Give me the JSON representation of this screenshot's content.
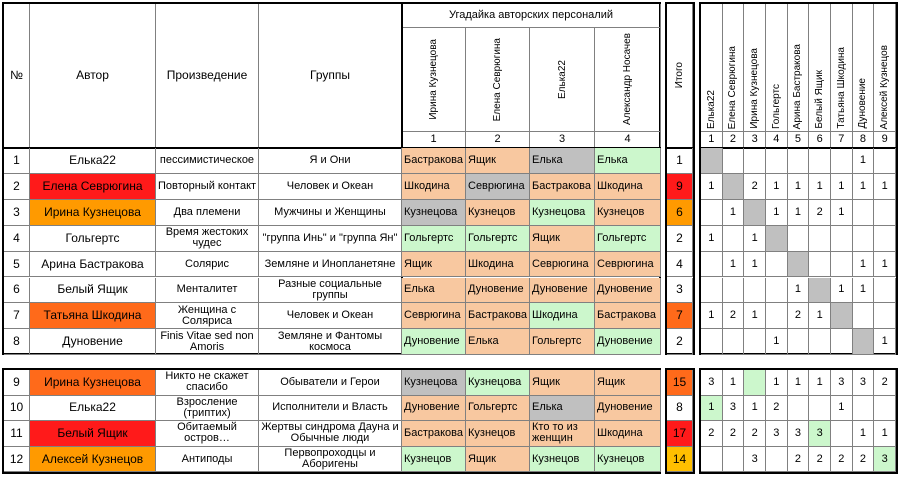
{
  "headers": {
    "num": "№",
    "author": "Автор",
    "work": "Произведение",
    "groups": "Группы",
    "guess_title": "Угадайка авторских персоналий",
    "total": "Итого"
  },
  "guessers": [
    "Ирина Кузнецова",
    "Елена Севрюгина",
    "Елька22",
    "Александр Носачев"
  ],
  "guesser_nums": [
    "1",
    "2",
    "3",
    "4"
  ],
  "matrix_authors": [
    "Елька22",
    "Елена Севрюгина",
    "Ирина Кузнецова",
    "Гольгертс",
    "Арина Бастракова",
    "Белый Ящик",
    "Татьяна Шкодина",
    "Дуновение",
    "Алексей Кузнецов"
  ],
  "matrix_nums": [
    "1",
    "2",
    "3",
    "4",
    "5",
    "6",
    "7",
    "8",
    "9"
  ],
  "colors": {
    "red": "#ff1a1a",
    "orange": "#ff9a00",
    "deep_orange": "#ff6a1a",
    "guess_green": "#ccf7cc",
    "guess_peach": "#f8c8a0",
    "guess_gray": "#c0c0c0",
    "score_yellow": "#ffbf00",
    "diag_gray": "#c0c0c0",
    "mx_green": "#ccf7cc"
  },
  "rows": [
    {
      "num": "1",
      "author": "Елька22",
      "author_color": "",
      "work": "пессимистическое",
      "groups": "Я и Они",
      "guesses": [
        {
          "t": "Бастракова",
          "c": "peach"
        },
        {
          "t": "Ящик",
          "c": "peach"
        },
        {
          "t": "Елька",
          "c": "gray"
        },
        {
          "t": "Елька",
          "c": "green"
        }
      ],
      "total": "1",
      "total_color": "",
      "matrix": [
        {
          "v": "",
          "c": "diag"
        },
        {
          "v": "",
          "c": ""
        },
        {
          "v": "",
          "c": ""
        },
        {
          "v": "",
          "c": ""
        },
        {
          "v": "",
          "c": ""
        },
        {
          "v": "",
          "c": ""
        },
        {
          "v": "",
          "c": ""
        },
        {
          "v": "1",
          "c": ""
        },
        {
          "v": "",
          "c": ""
        }
      ]
    },
    {
      "num": "2",
      "author": "Елена Севрюгина",
      "author_color": "red",
      "work": "Повторный контакт",
      "groups": "Человек и Океан",
      "guesses": [
        {
          "t": "Шкодина",
          "c": "peach"
        },
        {
          "t": "Севрюгина",
          "c": "gray"
        },
        {
          "t": "Бастракова",
          "c": "peach"
        },
        {
          "t": "Шкодина",
          "c": "peach"
        }
      ],
      "total": "9",
      "total_color": "red",
      "matrix": [
        {
          "v": "1",
          "c": ""
        },
        {
          "v": "",
          "c": "diag"
        },
        {
          "v": "2",
          "c": ""
        },
        {
          "v": "1",
          "c": ""
        },
        {
          "v": "1",
          "c": ""
        },
        {
          "v": "1",
          "c": ""
        },
        {
          "v": "1",
          "c": ""
        },
        {
          "v": "1",
          "c": ""
        },
        {
          "v": "1",
          "c": ""
        }
      ]
    },
    {
      "num": "3",
      "author": "Ирина Кузнецова",
      "author_color": "orange",
      "work": "Два племени",
      "groups": "Мужчины и Женщины",
      "guesses": [
        {
          "t": "Кузнецова",
          "c": "gray"
        },
        {
          "t": "Кузнецов",
          "c": "peach"
        },
        {
          "t": "Кузнецова",
          "c": "green"
        },
        {
          "t": "Кузнецов",
          "c": "peach"
        }
      ],
      "total": "6",
      "total_color": "orange",
      "matrix": [
        {
          "v": "",
          "c": ""
        },
        {
          "v": "1",
          "c": ""
        },
        {
          "v": "",
          "c": "diag"
        },
        {
          "v": "1",
          "c": ""
        },
        {
          "v": "1",
          "c": ""
        },
        {
          "v": "2",
          "c": ""
        },
        {
          "v": "1",
          "c": ""
        },
        {
          "v": "",
          "c": ""
        },
        {
          "v": "",
          "c": ""
        }
      ]
    },
    {
      "num": "4",
      "author": "Гольгертс",
      "author_color": "",
      "work": "Время жестоких чудес",
      "groups": "\"группа Инь\" и \"группа Ян\"",
      "guesses": [
        {
          "t": "Гольгертс",
          "c": "green"
        },
        {
          "t": "Гольгертс",
          "c": "green"
        },
        {
          "t": "Ящик",
          "c": "peach"
        },
        {
          "t": "Гольгертс",
          "c": "green"
        }
      ],
      "total": "2",
      "total_color": "",
      "matrix": [
        {
          "v": "1",
          "c": ""
        },
        {
          "v": "",
          "c": ""
        },
        {
          "v": "1",
          "c": ""
        },
        {
          "v": "",
          "c": "diag"
        },
        {
          "v": "",
          "c": ""
        },
        {
          "v": "",
          "c": ""
        },
        {
          "v": "",
          "c": ""
        },
        {
          "v": "",
          "c": ""
        },
        {
          "v": "",
          "c": ""
        }
      ]
    },
    {
      "num": "5",
      "author": "Арина Бастракова",
      "author_color": "",
      "work": "Солярис",
      "groups": "Земляне и Инопланетяне",
      "guesses": [
        {
          "t": "Ящик",
          "c": "peach"
        },
        {
          "t": "Шкодина",
          "c": "peach"
        },
        {
          "t": "Севрюгина",
          "c": "peach"
        },
        {
          "t": "Севрюгина",
          "c": "peach"
        }
      ],
      "total": "4",
      "total_color": "",
      "matrix": [
        {
          "v": "",
          "c": ""
        },
        {
          "v": "1",
          "c": ""
        },
        {
          "v": "1",
          "c": ""
        },
        {
          "v": "",
          "c": ""
        },
        {
          "v": "",
          "c": "diag"
        },
        {
          "v": "",
          "c": ""
        },
        {
          "v": "",
          "c": ""
        },
        {
          "v": "1",
          "c": ""
        },
        {
          "v": "1",
          "c": ""
        }
      ]
    },
    {
      "num": "6",
      "author": "Белый Ящик",
      "author_color": "",
      "work": "Менталитет",
      "groups": "Разные социальные группы",
      "guesses": [
        {
          "t": "Елька",
          "c": "peach"
        },
        {
          "t": "Дуновение",
          "c": "peach"
        },
        {
          "t": "Дуновение",
          "c": "peach"
        },
        {
          "t": "Дуновение",
          "c": "peach"
        }
      ],
      "total": "3",
      "total_color": "",
      "matrix": [
        {
          "v": "",
          "c": ""
        },
        {
          "v": "",
          "c": ""
        },
        {
          "v": "",
          "c": ""
        },
        {
          "v": "",
          "c": ""
        },
        {
          "v": "1",
          "c": ""
        },
        {
          "v": "",
          "c": "diag"
        },
        {
          "v": "1",
          "c": ""
        },
        {
          "v": "1",
          "c": ""
        },
        {
          "v": "",
          "c": ""
        }
      ]
    },
    {
      "num": "7",
      "author": "Татьяна Шкодина",
      "author_color": "deep_orange",
      "work": "Женщина с Соляриса",
      "groups": "Человек и Океан",
      "guesses": [
        {
          "t": "Севрюгина",
          "c": "peach"
        },
        {
          "t": "Бастракова",
          "c": "peach"
        },
        {
          "t": "Шкодина",
          "c": "green"
        },
        {
          "t": "Бастракова",
          "c": "peach"
        }
      ],
      "total": "7",
      "total_color": "deep_orange",
      "matrix": [
        {
          "v": "1",
          "c": ""
        },
        {
          "v": "2",
          "c": ""
        },
        {
          "v": "1",
          "c": ""
        },
        {
          "v": "",
          "c": ""
        },
        {
          "v": "2",
          "c": ""
        },
        {
          "v": "1",
          "c": ""
        },
        {
          "v": "",
          "c": "diag"
        },
        {
          "v": "",
          "c": ""
        },
        {
          "v": "",
          "c": ""
        }
      ]
    },
    {
      "num": "8",
      "author": "Дуновение",
      "author_color": "",
      "work": "Finis Vitae sed non Amoris",
      "groups": "Земляне и Фантомы космоса",
      "guesses": [
        {
          "t": "Дуновение",
          "c": "green"
        },
        {
          "t": "Елька",
          "c": "peach"
        },
        {
          "t": "Гольгертс",
          "c": "peach"
        },
        {
          "t": "Дуновение",
          "c": "green"
        }
      ],
      "total": "2",
      "total_color": "",
      "matrix": [
        {
          "v": "",
          "c": ""
        },
        {
          "v": "",
          "c": ""
        },
        {
          "v": "",
          "c": ""
        },
        {
          "v": "1",
          "c": ""
        },
        {
          "v": "",
          "c": ""
        },
        {
          "v": "",
          "c": ""
        },
        {
          "v": "",
          "c": ""
        },
        {
          "v": "",
          "c": "diag"
        },
        {
          "v": "1",
          "c": ""
        }
      ]
    },
    {
      "num": "9",
      "author": "Ирина Кузнецова",
      "author_color": "deep_orange",
      "work": "Никто не скажет спасибо",
      "groups": "Обыватели и Герои",
      "guesses": [
        {
          "t": "Кузнецова",
          "c": "gray"
        },
        {
          "t": "Кузнецова",
          "c": "green"
        },
        {
          "t": "Ящик",
          "c": "peach"
        },
        {
          "t": "Ящик",
          "c": "peach"
        }
      ],
      "total": "15",
      "total_color": "deep_orange",
      "matrix": [
        {
          "v": "3",
          "c": ""
        },
        {
          "v": "1",
          "c": ""
        },
        {
          "v": "",
          "c": "green"
        },
        {
          "v": "1",
          "c": ""
        },
        {
          "v": "1",
          "c": ""
        },
        {
          "v": "1",
          "c": ""
        },
        {
          "v": "3",
          "c": ""
        },
        {
          "v": "3",
          "c": ""
        },
        {
          "v": "2",
          "c": ""
        }
      ]
    },
    {
      "num": "10",
      "author": "Елька22",
      "author_color": "",
      "work": "Взросление (триптих)",
      "groups": "Исполнители и Власть",
      "guesses": [
        {
          "t": "Дуновение",
          "c": "peach"
        },
        {
          "t": "Гольгертс",
          "c": "peach"
        },
        {
          "t": "Елька",
          "c": "gray"
        },
        {
          "t": "Дуновение",
          "c": "peach"
        }
      ],
      "total": "8",
      "total_color": "",
      "matrix": [
        {
          "v": "1",
          "c": "green"
        },
        {
          "v": "3",
          "c": ""
        },
        {
          "v": "1",
          "c": ""
        },
        {
          "v": "2",
          "c": ""
        },
        {
          "v": "",
          "c": ""
        },
        {
          "v": "",
          "c": ""
        },
        {
          "v": "1",
          "c": ""
        },
        {
          "v": "",
          "c": ""
        },
        {
          "v": "",
          "c": ""
        }
      ]
    },
    {
      "num": "11",
      "author": "Белый Ящик",
      "author_color": "red",
      "work": "Обитаемый остров…",
      "groups": "Жертвы синдрома Дауна и Обычные люди",
      "guesses": [
        {
          "t": "Бастракова",
          "c": "peach"
        },
        {
          "t": "Кузнецов",
          "c": "peach"
        },
        {
          "t": "Кто то из женщин",
          "c": "peach"
        },
        {
          "t": "Шкодина",
          "c": "peach"
        }
      ],
      "total": "17",
      "total_color": "red",
      "matrix": [
        {
          "v": "2",
          "c": ""
        },
        {
          "v": "2",
          "c": ""
        },
        {
          "v": "2",
          "c": ""
        },
        {
          "v": "3",
          "c": ""
        },
        {
          "v": "3",
          "c": ""
        },
        {
          "v": "3",
          "c": "green"
        },
        {
          "v": "",
          "c": ""
        },
        {
          "v": "1",
          "c": ""
        },
        {
          "v": "1",
          "c": ""
        }
      ]
    },
    {
      "num": "12",
      "author": "Алексей Кузнецов",
      "author_color": "orange",
      "work": "Антиподы",
      "groups": "Первопроходцы и Аборигены",
      "guesses": [
        {
          "t": "Кузнецов",
          "c": "green"
        },
        {
          "t": "Ящик",
          "c": "peach"
        },
        {
          "t": "Кузнецов",
          "c": "green"
        },
        {
          "t": "Кузнецов",
          "c": "green"
        }
      ],
      "total": "14",
      "total_color": "score_yellow",
      "matrix": [
        {
          "v": "",
          "c": ""
        },
        {
          "v": "",
          "c": ""
        },
        {
          "v": "3",
          "c": ""
        },
        {
          "v": "",
          "c": ""
        },
        {
          "v": "2",
          "c": ""
        },
        {
          "v": "2",
          "c": ""
        },
        {
          "v": "2",
          "c": ""
        },
        {
          "v": "2",
          "c": ""
        },
        {
          "v": "3",
          "c": "green"
        }
      ]
    }
  ]
}
